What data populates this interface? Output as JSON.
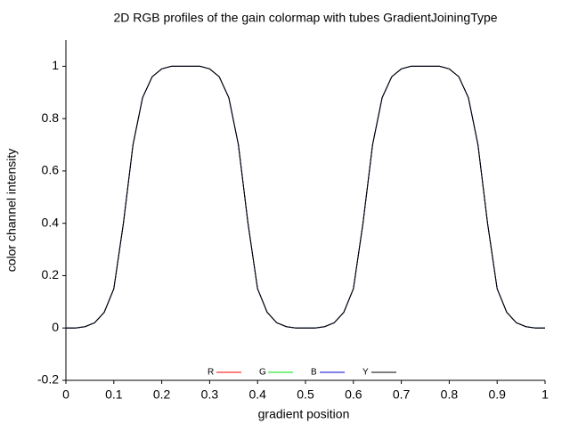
{
  "chart_data": {
    "type": "line",
    "title": "2D RGB profiles of the gain colormap with tubes GradientJoiningType",
    "x_label": "gradient position",
    "y_label": "color channel intensity",
    "x": [
      0,
      0.02,
      0.04,
      0.06,
      0.08,
      0.1,
      0.12,
      0.14,
      0.16,
      0.18,
      0.2,
      0.22,
      0.24,
      0.26,
      0.28,
      0.3,
      0.32,
      0.34,
      0.36,
      0.38,
      0.4,
      0.42,
      0.44,
      0.46,
      0.48,
      0.5,
      0.52,
      0.54,
      0.56,
      0.58,
      0.6,
      0.62,
      0.64,
      0.66,
      0.68,
      0.7,
      0.72,
      0.74,
      0.76,
      0.78,
      0.8,
      0.82,
      0.84,
      0.86,
      0.88,
      0.9,
      0.92,
      0.94,
      0.96,
      0.98,
      1
    ],
    "series": [
      {
        "name": "R",
        "color": "#ff0000",
        "values": [
          0,
          0,
          0.005,
          0.02,
          0.06,
          0.15,
          0.4,
          0.7,
          0.88,
          0.96,
          0.99,
          1,
          1,
          1,
          1,
          0.99,
          0.96,
          0.88,
          0.7,
          0.4,
          0.15,
          0.06,
          0.02,
          0.005,
          0,
          0,
          0,
          0.005,
          0.02,
          0.06,
          0.15,
          0.4,
          0.7,
          0.88,
          0.96,
          0.99,
          1,
          1,
          1,
          1,
          0.99,
          0.96,
          0.88,
          0.7,
          0.4,
          0.15,
          0.06,
          0.02,
          0.005,
          0,
          0
        ]
      },
      {
        "name": "G",
        "color": "#00dd00",
        "values": [
          0,
          0,
          0.005,
          0.02,
          0.06,
          0.15,
          0.4,
          0.7,
          0.88,
          0.96,
          0.99,
          1,
          1,
          1,
          1,
          0.99,
          0.96,
          0.88,
          0.7,
          0.4,
          0.15,
          0.06,
          0.02,
          0.005,
          0,
          0,
          0,
          0.005,
          0.02,
          0.06,
          0.15,
          0.4,
          0.7,
          0.88,
          0.96,
          0.99,
          1,
          1,
          1,
          1,
          0.99,
          0.96,
          0.88,
          0.7,
          0.4,
          0.15,
          0.06,
          0.02,
          0.005,
          0,
          0
        ]
      },
      {
        "name": "B",
        "color": "#0000cc",
        "values": [
          0,
          0,
          0.005,
          0.02,
          0.06,
          0.15,
          0.4,
          0.7,
          0.88,
          0.96,
          0.99,
          1,
          1,
          1,
          1,
          0.99,
          0.96,
          0.88,
          0.7,
          0.4,
          0.15,
          0.06,
          0.02,
          0.005,
          0,
          0,
          0,
          0.005,
          0.02,
          0.06,
          0.15,
          0.4,
          0.7,
          0.88,
          0.96,
          0.99,
          1,
          1,
          1,
          1,
          0.99,
          0.96,
          0.88,
          0.7,
          0.4,
          0.15,
          0.06,
          0.02,
          0.005,
          0,
          0
        ]
      },
      {
        "name": "Y",
        "color": "#000000",
        "values": [
          0,
          0,
          0.005,
          0.02,
          0.06,
          0.15,
          0.4,
          0.7,
          0.88,
          0.96,
          0.99,
          1,
          1,
          1,
          1,
          0.99,
          0.96,
          0.88,
          0.7,
          0.4,
          0.15,
          0.06,
          0.02,
          0.005,
          0,
          0,
          0,
          0.005,
          0.02,
          0.06,
          0.15,
          0.4,
          0.7,
          0.88,
          0.96,
          0.99,
          1,
          1,
          1,
          1,
          0.99,
          0.96,
          0.88,
          0.7,
          0.4,
          0.15,
          0.06,
          0.02,
          0.005,
          0,
          0
        ]
      }
    ],
    "xlim": [
      0,
      1
    ],
    "xticks": [
      0,
      0.1,
      0.2,
      0.3,
      0.4,
      0.5,
      0.6,
      0.7,
      0.8,
      0.9,
      1
    ],
    "ylim": [
      -0.2,
      1.1
    ],
    "yticks": [
      -0.2,
      0,
      0.2,
      0.4,
      0.6,
      0.8,
      1
    ],
    "grid": false,
    "legend": "bottom"
  }
}
